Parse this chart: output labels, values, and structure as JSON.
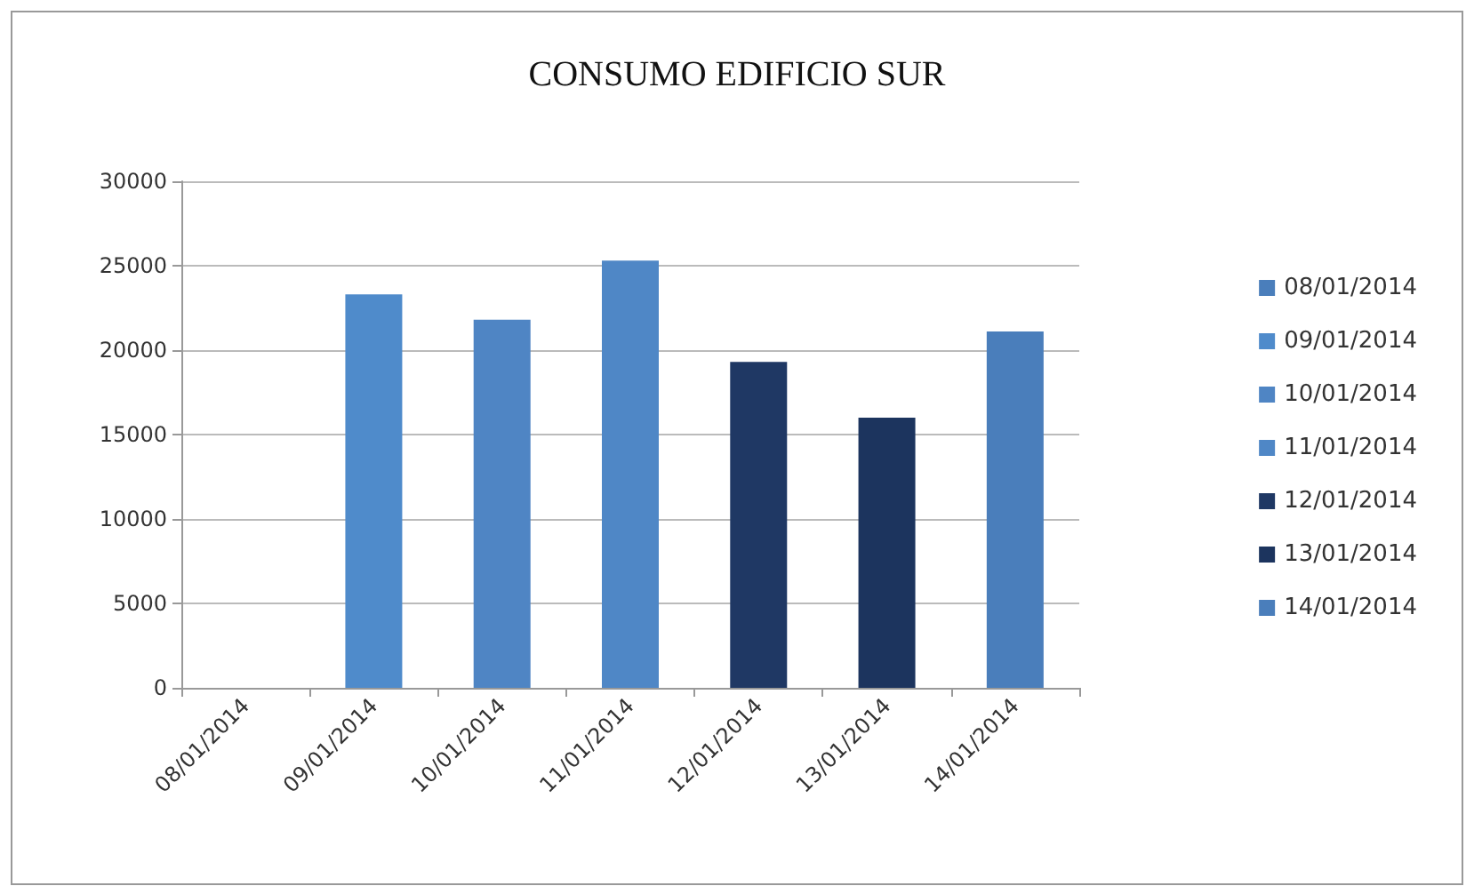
{
  "chart_data": {
    "type": "bar",
    "title": "CONSUMO EDIFICIO SUR",
    "categories": [
      "08/01/2014",
      "09/01/2014",
      "10/01/2014",
      "11/01/2014",
      "12/01/2014",
      "13/01/2014",
      "14/01/2014"
    ],
    "series": [
      {
        "name": "08/01/2014",
        "color": "#4a7ebb",
        "values": [
          0,
          null,
          null,
          null,
          null,
          null,
          null
        ]
      },
      {
        "name": "09/01/2014",
        "color": "#4f8bcb",
        "values": [
          null,
          23300,
          null,
          null,
          null,
          null,
          null
        ]
      },
      {
        "name": "10/01/2014",
        "color": "#4f85c4",
        "values": [
          null,
          null,
          21800,
          null,
          null,
          null,
          null
        ]
      },
      {
        "name": "11/01/2014",
        "color": "#4f87c6",
        "values": [
          null,
          null,
          null,
          25300,
          null,
          null,
          null
        ]
      },
      {
        "name": "12/01/2014",
        "color": "#1f3864",
        "values": [
          null,
          null,
          null,
          null,
          19300,
          null,
          null
        ]
      },
      {
        "name": "13/01/2014",
        "color": "#1c345e",
        "values": [
          null,
          null,
          null,
          null,
          null,
          16000,
          null
        ]
      },
      {
        "name": "14/01/2014",
        "color": "#4a7ebb",
        "values": [
          null,
          null,
          null,
          null,
          null,
          null,
          21100
        ]
      }
    ],
    "ylim": [
      0,
      30000
    ],
    "yticks": [
      0,
      5000,
      10000,
      15000,
      20000,
      25000,
      30000
    ],
    "grid": "y",
    "legend": "right"
  }
}
